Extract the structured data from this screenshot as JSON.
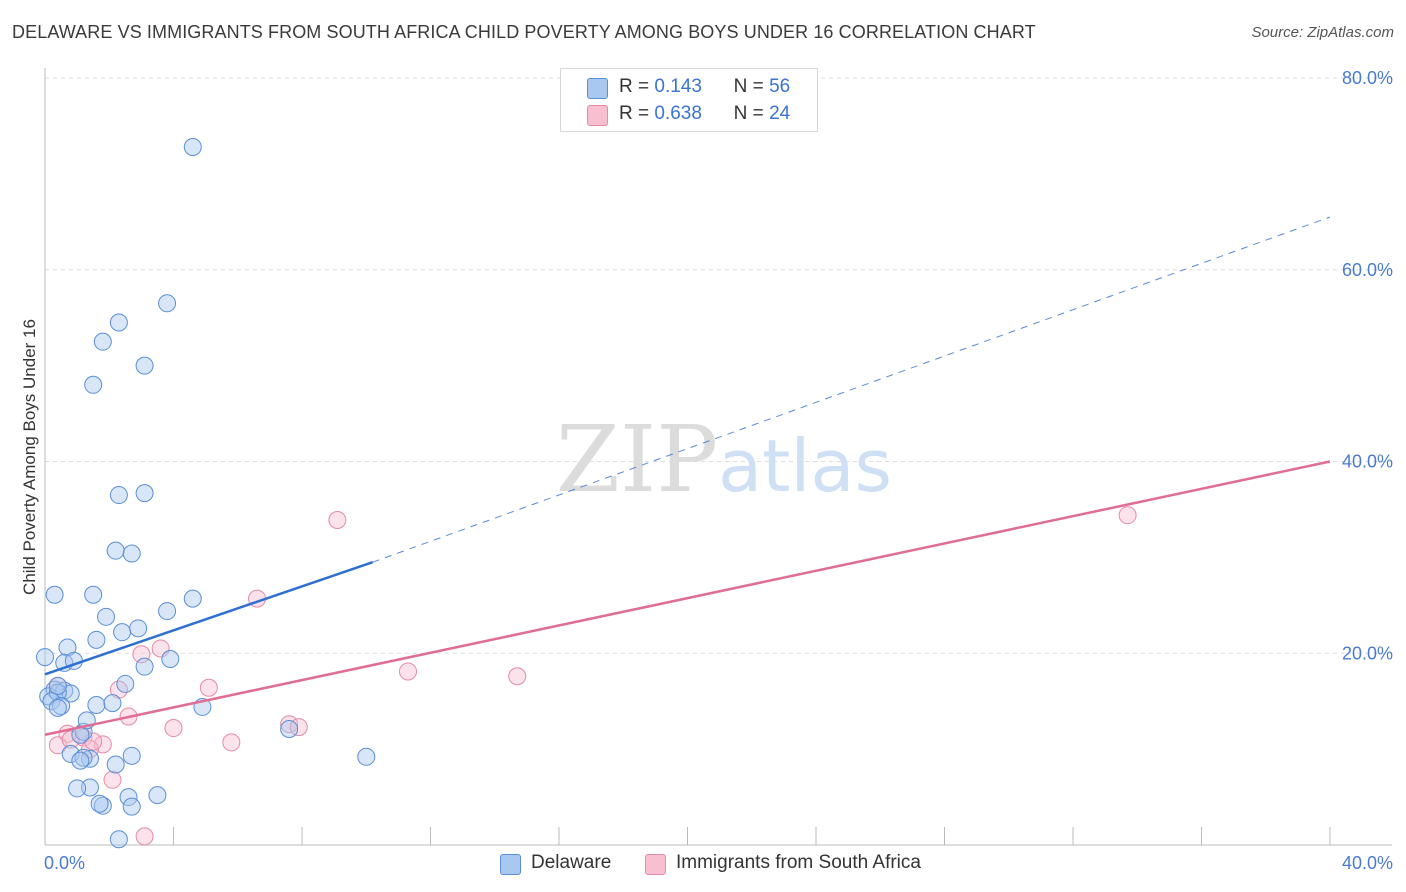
{
  "title": "DELAWARE VS IMMIGRANTS FROM SOUTH AFRICA CHILD POVERTY AMONG BOYS UNDER 16 CORRELATION CHART",
  "source": "Source: ZipAtlas.com",
  "colors": {
    "delaware_fill": "#a9c8f0",
    "delaware_stroke": "#5a8fd6",
    "delaware_line": "#2e6fd0",
    "sa_fill": "#f8bfd0",
    "sa_stroke": "#e58aa8",
    "sa_line": "#e06d94",
    "grid": "#dddddd",
    "tick_label": "#4a7bd0"
  },
  "legend_top": {
    "rows": [
      {
        "r_label": "R =",
        "r_value": "0.143",
        "n_label": "N =",
        "n_value": "56"
      },
      {
        "r_label": "R =",
        "r_value": "0.638",
        "n_label": "N =",
        "n_value": "24"
      }
    ]
  },
  "legend_bottom": {
    "items": [
      "Delaware",
      "Immigrants from South Africa"
    ]
  },
  "chart_data": {
    "type": "scatter",
    "title": "DELAWARE VS IMMIGRANTS FROM SOUTH AFRICA CHILD POVERTY AMONG BOYS UNDER 16 CORRELATION CHART",
    "xlabel": "",
    "ylabel": "Child Poverty Among Boys Under 16",
    "xlim": [
      0,
      40
    ],
    "ylim": [
      0,
      80
    ],
    "x_tick_labels": [
      "0.0%",
      "40.0%"
    ],
    "y_tick_labels": [
      "20.0%",
      "40.0%",
      "60.0%",
      "80.0%"
    ],
    "y_ticks": [
      20,
      40,
      60,
      80
    ],
    "watermark": {
      "part1": "ZIP",
      "part2": "atlas"
    },
    "series": [
      {
        "name": "Delaware",
        "r": 0.143,
        "n": 56,
        "trend": {
          "x0": 0,
          "y0": 17.8,
          "x1": 10.2,
          "y1": 29.5,
          "dash_x1": 40,
          "dash_y1": 65.5
        },
        "points": [
          [
            4.6,
            72.8
          ],
          [
            3.8,
            56.5
          ],
          [
            2.3,
            54.5
          ],
          [
            1.8,
            52.5
          ],
          [
            3.1,
            50.0
          ],
          [
            1.5,
            48.0
          ],
          [
            2.3,
            36.5
          ],
          [
            3.1,
            36.7
          ],
          [
            2.2,
            30.7
          ],
          [
            2.7,
            30.4
          ],
          [
            0.3,
            26.1
          ],
          [
            1.5,
            26.1
          ],
          [
            4.6,
            25.7
          ],
          [
            1.9,
            23.8
          ],
          [
            3.8,
            24.4
          ],
          [
            2.4,
            22.2
          ],
          [
            2.9,
            22.6
          ],
          [
            1.6,
            21.4
          ],
          [
            0.7,
            20.6
          ],
          [
            0.0,
            19.6
          ],
          [
            0.6,
            19.0
          ],
          [
            0.9,
            19.2
          ],
          [
            3.9,
            19.4
          ],
          [
            3.1,
            18.6
          ],
          [
            2.5,
            16.8
          ],
          [
            0.3,
            16.2
          ],
          [
            0.6,
            16.1
          ],
          [
            0.8,
            15.8
          ],
          [
            0.1,
            15.5
          ],
          [
            0.4,
            15.9
          ],
          [
            0.2,
            15.0
          ],
          [
            0.5,
            14.5
          ],
          [
            1.6,
            14.6
          ],
          [
            2.1,
            14.8
          ],
          [
            4.9,
            14.4
          ],
          [
            0.4,
            14.3
          ],
          [
            1.2,
            11.8
          ],
          [
            1.1,
            11.5
          ],
          [
            7.6,
            12.1
          ],
          [
            0.8,
            9.5
          ],
          [
            1.4,
            9.0
          ],
          [
            1.2,
            9.1
          ],
          [
            2.7,
            9.3
          ],
          [
            1.1,
            8.8
          ],
          [
            2.2,
            8.4
          ],
          [
            10.0,
            9.2
          ],
          [
            1.4,
            6.0
          ],
          [
            1.0,
            5.9
          ],
          [
            2.6,
            5.0
          ],
          [
            3.5,
            5.2
          ],
          [
            1.8,
            4.1
          ],
          [
            1.7,
            4.3
          ],
          [
            2.7,
            4.0
          ],
          [
            2.3,
            0.6
          ],
          [
            0.4,
            16.6
          ],
          [
            1.3,
            13.0
          ]
        ]
      },
      {
        "name": "Immigrants from South Africa",
        "r": 0.638,
        "n": 24,
        "trend": {
          "x0": 0,
          "y0": 11.5,
          "x1": 40,
          "y1": 40.0
        },
        "points": [
          [
            9.1,
            33.9
          ],
          [
            33.7,
            34.4
          ],
          [
            6.6,
            25.7
          ],
          [
            3.6,
            20.5
          ],
          [
            3.0,
            19.9
          ],
          [
            11.3,
            18.1
          ],
          [
            14.7,
            17.6
          ],
          [
            5.1,
            16.4
          ],
          [
            2.3,
            16.2
          ],
          [
            0.4,
            16.6
          ],
          [
            2.6,
            13.4
          ],
          [
            7.6,
            12.6
          ],
          [
            7.9,
            12.3
          ],
          [
            4.0,
            12.2
          ],
          [
            0.7,
            11.6
          ],
          [
            1.2,
            11.2
          ],
          [
            5.8,
            10.7
          ],
          [
            0.4,
            10.4
          ],
          [
            1.8,
            10.5
          ],
          [
            1.4,
            10.0
          ],
          [
            2.1,
            6.8
          ],
          [
            3.1,
            0.9
          ],
          [
            0.8,
            11.0
          ],
          [
            1.5,
            10.8
          ]
        ]
      }
    ]
  }
}
